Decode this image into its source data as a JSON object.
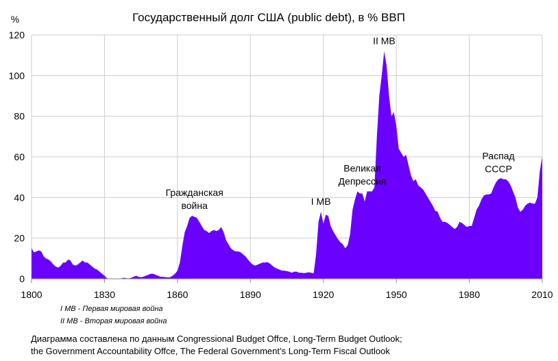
{
  "chart_data": {
    "type": "area",
    "title": "Государственный долг США (public debt), в % ВВП",
    "ylabel": "%",
    "xlabel": "",
    "xlim": [
      1800,
      2010
    ],
    "ylim": [
      0,
      120
    ],
    "x_ticks": [
      "1800",
      "1830",
      "1860",
      "1890",
      "1920",
      "1950",
      "1980",
      "2010"
    ],
    "y_ticks": [
      "0",
      "20",
      "40",
      "60",
      "80",
      "100",
      "120"
    ],
    "grid": true,
    "fill_color": "#6a00ff",
    "series": [
      {
        "name": "Государственный долг США, % ВВП",
        "points": [
          [
            1800,
            15
          ],
          [
            1801,
            13
          ],
          [
            1802,
            13.5
          ],
          [
            1803,
            14
          ],
          [
            1804,
            13.5
          ],
          [
            1805,
            11
          ],
          [
            1806,
            10
          ],
          [
            1807,
            9.5
          ],
          [
            1808,
            8.5
          ],
          [
            1809,
            7
          ],
          [
            1810,
            6
          ],
          [
            1811,
            5.5
          ],
          [
            1812,
            6.5
          ],
          [
            1813,
            8
          ],
          [
            1814,
            8
          ],
          [
            1815,
            9.5
          ],
          [
            1816,
            9
          ],
          [
            1817,
            7
          ],
          [
            1818,
            6.5
          ],
          [
            1819,
            7
          ],
          [
            1820,
            8
          ],
          [
            1821,
            9
          ],
          [
            1822,
            8
          ],
          [
            1823,
            8
          ],
          [
            1824,
            7
          ],
          [
            1825,
            6
          ],
          [
            1826,
            5
          ],
          [
            1827,
            4.5
          ],
          [
            1828,
            3.5
          ],
          [
            1829,
            2.5
          ],
          [
            1830,
            1.5
          ],
          [
            1831,
            0.3
          ],
          [
            1832,
            0.1
          ],
          [
            1833,
            0
          ],
          [
            1834,
            0
          ],
          [
            1835,
            0
          ],
          [
            1836,
            0
          ],
          [
            1837,
            0.2
          ],
          [
            1838,
            0.5
          ],
          [
            1839,
            0.3
          ],
          [
            1840,
            0.2
          ],
          [
            1841,
            0.5
          ],
          [
            1842,
            1
          ],
          [
            1843,
            1.5
          ],
          [
            1844,
            1
          ],
          [
            1845,
            0.8
          ],
          [
            1846,
            1
          ],
          [
            1847,
            1.5
          ],
          [
            1848,
            2
          ],
          [
            1849,
            2.5
          ],
          [
            1850,
            2.5
          ],
          [
            1851,
            2
          ],
          [
            1852,
            1.5
          ],
          [
            1853,
            1
          ],
          [
            1854,
            1
          ],
          [
            1855,
            0.8
          ],
          [
            1856,
            0.7
          ],
          [
            1857,
            0.8
          ],
          [
            1858,
            1.5
          ],
          [
            1859,
            2.5
          ],
          [
            1860,
            4
          ],
          [
            1861,
            8
          ],
          [
            1862,
            16
          ],
          [
            1863,
            23
          ],
          [
            1864,
            26
          ],
          [
            1865,
            30
          ],
          [
            1866,
            31
          ],
          [
            1867,
            30.5
          ],
          [
            1868,
            30
          ],
          [
            1869,
            28
          ],
          [
            1870,
            26
          ],
          [
            1871,
            24
          ],
          [
            1872,
            23.5
          ],
          [
            1873,
            22.5
          ],
          [
            1874,
            23.5
          ],
          [
            1875,
            24
          ],
          [
            1876,
            23.5
          ],
          [
            1877,
            24
          ],
          [
            1878,
            25.5
          ],
          [
            1879,
            23
          ],
          [
            1880,
            19
          ],
          [
            1881,
            17
          ],
          [
            1882,
            15
          ],
          [
            1883,
            14
          ],
          [
            1884,
            13.5
          ],
          [
            1885,
            13.5
          ],
          [
            1886,
            13
          ],
          [
            1887,
            12
          ],
          [
            1888,
            11
          ],
          [
            1889,
            9.5
          ],
          [
            1890,
            8
          ],
          [
            1891,
            7
          ],
          [
            1892,
            6.5
          ],
          [
            1893,
            7
          ],
          [
            1894,
            7.5
          ],
          [
            1895,
            8
          ],
          [
            1896,
            8
          ],
          [
            1897,
            8.2
          ],
          [
            1898,
            7.5
          ],
          [
            1899,
            6.5
          ],
          [
            1900,
            5.5
          ],
          [
            1901,
            5
          ],
          [
            1902,
            4.5
          ],
          [
            1903,
            4
          ],
          [
            1904,
            4
          ],
          [
            1905,
            3.8
          ],
          [
            1906,
            3.5
          ],
          [
            1907,
            3
          ],
          [
            1908,
            3.5
          ],
          [
            1909,
            3.5
          ],
          [
            1910,
            3
          ],
          [
            1911,
            3
          ],
          [
            1912,
            2.8
          ],
          [
            1913,
            3
          ],
          [
            1914,
            3.2
          ],
          [
            1915,
            3
          ],
          [
            1916,
            2.7
          ],
          [
            1917,
            12
          ],
          [
            1918,
            28
          ],
          [
            1919,
            33
          ],
          [
            1920,
            27
          ],
          [
            1921,
            31.5
          ],
          [
            1922,
            31
          ],
          [
            1923,
            26
          ],
          [
            1924,
            23.5
          ],
          [
            1925,
            21.5
          ],
          [
            1926,
            19.5
          ],
          [
            1927,
            18
          ],
          [
            1928,
            17
          ],
          [
            1929,
            15
          ],
          [
            1930,
            16.5
          ],
          [
            1931,
            22
          ],
          [
            1932,
            34
          ],
          [
            1933,
            39
          ],
          [
            1934,
            43
          ],
          [
            1935,
            42
          ],
          [
            1936,
            42
          ],
          [
            1937,
            38
          ],
          [
            1938,
            43
          ],
          [
            1939,
            43
          ],
          [
            1940,
            43
          ],
          [
            1941,
            45
          ],
          [
            1942,
            70
          ],
          [
            1943,
            90
          ],
          [
            1944,
            100
          ],
          [
            1945,
            112
          ],
          [
            1946,
            105
          ],
          [
            1947,
            90
          ],
          [
            1948,
            80
          ],
          [
            1949,
            82
          ],
          [
            1950,
            75
          ],
          [
            1951,
            64
          ],
          [
            1952,
            62
          ],
          [
            1953,
            60
          ],
          [
            1954,
            61
          ],
          [
            1955,
            56
          ],
          [
            1956,
            51
          ],
          [
            1957,
            48
          ],
          [
            1958,
            49
          ],
          [
            1959,
            46
          ],
          [
            1960,
            45
          ],
          [
            1961,
            44
          ],
          [
            1962,
            42
          ],
          [
            1963,
            40
          ],
          [
            1964,
            38
          ],
          [
            1965,
            36
          ],
          [
            1966,
            33.5
          ],
          [
            1967,
            33
          ],
          [
            1968,
            30
          ],
          [
            1969,
            28
          ],
          [
            1970,
            28
          ],
          [
            1971,
            27.5
          ],
          [
            1972,
            26.5
          ],
          [
            1973,
            25.5
          ],
          [
            1974,
            24.5
          ],
          [
            1975,
            25.5
          ],
          [
            1976,
            28
          ],
          [
            1977,
            27.5
          ],
          [
            1978,
            26.5
          ],
          [
            1979,
            25.5
          ],
          [
            1980,
            26
          ],
          [
            1981,
            26
          ],
          [
            1982,
            30
          ],
          [
            1983,
            34
          ],
          [
            1984,
            36
          ],
          [
            1985,
            39
          ],
          [
            1986,
            41
          ],
          [
            1987,
            41.5
          ],
          [
            1988,
            41.5
          ],
          [
            1989,
            42
          ],
          [
            1990,
            45
          ],
          [
            1991,
            47.5
          ],
          [
            1992,
            49
          ],
          [
            1993,
            49.5
          ],
          [
            1994,
            49
          ],
          [
            1995,
            49
          ],
          [
            1996,
            48
          ],
          [
            1997,
            46
          ],
          [
            1998,
            43
          ],
          [
            1999,
            40
          ],
          [
            2000,
            35
          ],
          [
            2001,
            33
          ],
          [
            2002,
            34
          ],
          [
            2003,
            36
          ],
          [
            2004,
            37
          ],
          [
            2005,
            37.5
          ],
          [
            2006,
            37
          ],
          [
            2007,
            37
          ],
          [
            2008,
            40
          ],
          [
            2009,
            53
          ],
          [
            2010,
            60
          ]
        ]
      }
    ],
    "annotations": [
      {
        "lines": [
          "Гражданская",
          "война"
        ],
        "x": 1867,
        "y": 31
      },
      {
        "lines": [
          "I MB"
        ],
        "x": 1919,
        "y": 33
      },
      {
        "lines": [
          "Великая",
          "Депрессия"
        ],
        "x": 1936,
        "y": 43
      },
      {
        "lines": [
          "II MB"
        ],
        "x": 1945,
        "y": 112
      },
      {
        "lines": [
          "Распад",
          "СССР"
        ],
        "x": 1992,
        "y": 49
      }
    ]
  },
  "notes": [
    "I MB - Первая мировая война",
    "II MB - Вторая мировая война"
  ],
  "source": [
    "Диаграмма составлена по данным Congressional Budget Offce, Long-Term Budget Outlook;",
    "the Government Accountability Offce, The Federal Government’s Long-Term Fiscal Outlook"
  ]
}
